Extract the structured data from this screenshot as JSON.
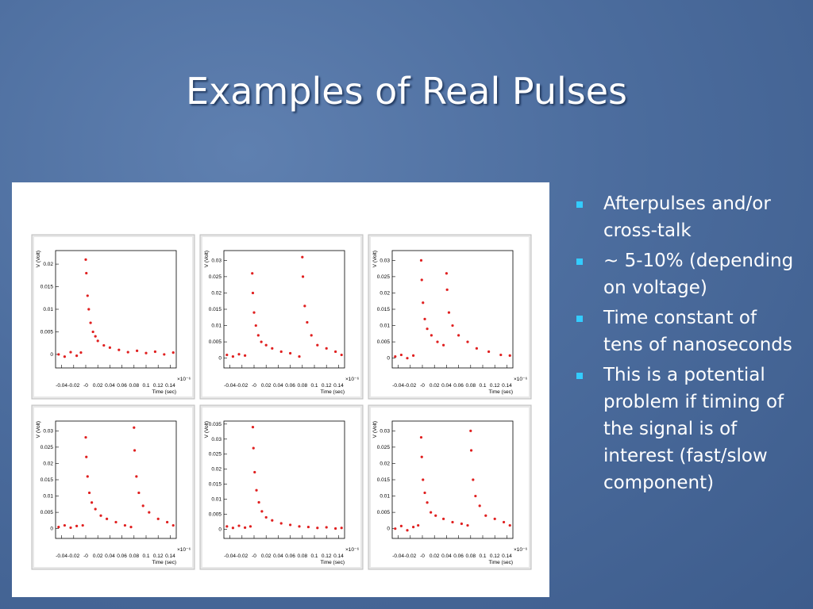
{
  "title": "Examples of Real Pulses",
  "bullets": [
    "Afterpulses and/or cross-talk",
    "~ 5-10% (depending on voltage)",
    "Time constant of tens of nanoseconds",
    "This is a potential problem if timing of the signal is of interest (fast/slow component)"
  ],
  "chart_data": [
    {
      "type": "scatter",
      "x_label": "Time (sec)",
      "y_label": "V (Volt)",
      "x_scale_label": "×10⁻⁶",
      "color": "#e02020",
      "xlim": [
        -0.05,
        0.15
      ],
      "ylim": [
        -0.003,
        0.023
      ],
      "xticks": [
        -0.04,
        -0.02,
        {
          "value": 0,
          "label": "-0"
        },
        0.02,
        0.04,
        0.06,
        0.08,
        0.1,
        0.12,
        0.14
      ],
      "yticks": [
        0,
        0.005,
        0.01,
        0.015,
        0.02
      ],
      "x": [
        -0.045,
        -0.035,
        -0.025,
        -0.015,
        -0.008,
        0,
        0.001,
        0.003,
        0.005,
        0.008,
        0.012,
        0.016,
        0.02,
        0.03,
        0.04,
        0.055,
        0.07,
        0.085,
        0.1,
        0.115,
        0.13,
        0.145
      ],
      "values": [
        0,
        -0.0005,
        0.0005,
        -0.0003,
        0.0004,
        0.021,
        0.018,
        0.013,
        0.01,
        0.007,
        0.005,
        0.004,
        0.003,
        0.002,
        0.0015,
        0.001,
        0.0005,
        0.0008,
        0.0003,
        0.0006,
        0,
        0.0004
      ]
    },
    {
      "type": "scatter",
      "x_label": "Time (sec)",
      "y_label": "V (Volt)",
      "x_scale_label": "×10⁻⁶",
      "color": "#e02020",
      "xlim": [
        -0.05,
        0.15
      ],
      "ylim": [
        -0.003,
        0.033
      ],
      "xticks": [
        -0.04,
        -0.02,
        {
          "value": 0,
          "label": "-0"
        },
        0.02,
        0.04,
        0.06,
        0.08,
        0.1,
        0.12,
        0.14
      ],
      "yticks": [
        0,
        0.005,
        0.01,
        0.015,
        0.02,
        0.025,
        0.03
      ],
      "x": [
        -0.045,
        -0.035,
        -0.025,
        -0.015,
        -0.003,
        -0.002,
        0,
        0.003,
        0.007,
        0.012,
        0.02,
        0.03,
        0.045,
        0.06,
        0.075,
        0.08,
        0.081,
        0.084,
        0.088,
        0.095,
        0.105,
        0.12,
        0.135,
        0.145
      ],
      "values": [
        0.001,
        0.0005,
        0.0012,
        0.0008,
        0.026,
        0.02,
        0.014,
        0.01,
        0.007,
        0.005,
        0.004,
        0.003,
        0.002,
        0.0015,
        0.0005,
        0.031,
        0.025,
        0.016,
        0.011,
        0.007,
        0.004,
        0.003,
        0.002,
        0.001
      ]
    },
    {
      "type": "scatter",
      "x_label": "Time (sec)",
      "y_label": "V (Volt)",
      "x_scale_label": "×10⁻⁶",
      "color": "#e02020",
      "xlim": [
        -0.05,
        0.15
      ],
      "ylim": [
        -0.003,
        0.033
      ],
      "xticks": [
        -0.04,
        -0.02,
        {
          "value": 0,
          "label": "-0"
        },
        0.02,
        0.04,
        0.06,
        0.08,
        0.1,
        0.12,
        0.14
      ],
      "yticks": [
        0,
        0.005,
        0.01,
        0.015,
        0.02,
        0.025,
        0.03
      ],
      "x": [
        -0.045,
        -0.035,
        -0.025,
        -0.015,
        -0.002,
        -0.001,
        0.001,
        0.004,
        0.008,
        0.015,
        0.025,
        0.035,
        0.04,
        0.041,
        0.044,
        0.05,
        0.06,
        0.075,
        0.09,
        0.11,
        0.13,
        0.145
      ],
      "values": [
        0.0005,
        0.001,
        0,
        0.0008,
        0.03,
        0.024,
        0.017,
        0.012,
        0.009,
        0.007,
        0.005,
        0.004,
        0.026,
        0.021,
        0.014,
        0.01,
        0.007,
        0.005,
        0.003,
        0.002,
        0.001,
        0.0008
      ]
    },
    {
      "type": "scatter",
      "x_label": "Time (sec)",
      "y_label": "V (Volt)",
      "x_scale_label": "×10⁻⁶",
      "color": "#e02020",
      "xlim": [
        -0.05,
        0.15
      ],
      "ylim": [
        -0.003,
        0.033
      ],
      "xticks": [
        -0.04,
        -0.02,
        {
          "value": 0,
          "label": "-0"
        },
        0.02,
        0.04,
        0.06,
        0.08,
        0.1,
        0.12,
        0.14
      ],
      "yticks": [
        0,
        0.005,
        0.01,
        0.015,
        0.02,
        0.025,
        0.03
      ],
      "x": [
        -0.045,
        -0.035,
        -0.025,
        -0.015,
        -0.005,
        0,
        0.001,
        0.003,
        0.006,
        0.01,
        0.016,
        0.025,
        0.035,
        0.05,
        0.065,
        0.075,
        0.08,
        0.081,
        0.084,
        0.088,
        0.095,
        0.105,
        0.12,
        0.135,
        0.145
      ],
      "values": [
        0.0005,
        0.001,
        0.0003,
        0.0008,
        0.001,
        0.028,
        0.022,
        0.016,
        0.011,
        0.008,
        0.006,
        0.004,
        0.003,
        0.002,
        0.001,
        0.0005,
        0.031,
        0.024,
        0.016,
        0.011,
        0.007,
        0.005,
        0.003,
        0.002,
        0.001
      ]
    },
    {
      "type": "scatter",
      "x_label": "Time (sec)",
      "y_label": "V (Volt)",
      "x_scale_label": "×10⁻⁶",
      "color": "#e02020",
      "xlim": [
        -0.05,
        0.15
      ],
      "ylim": [
        -0.003,
        0.036
      ],
      "xticks": [
        -0.04,
        -0.02,
        {
          "value": 0,
          "label": "-0"
        },
        0.02,
        0.04,
        0.06,
        0.08,
        0.1,
        0.12,
        0.14
      ],
      "yticks": [
        0,
        0.005,
        0.01,
        0.015,
        0.02,
        0.025,
        0.03,
        0.035
      ],
      "x": [
        -0.045,
        -0.035,
        -0.025,
        -0.015,
        -0.006,
        -0.002,
        -0.001,
        0.001,
        0.004,
        0.008,
        0.013,
        0.02,
        0.03,
        0.045,
        0.06,
        0.075,
        0.09,
        0.105,
        0.12,
        0.135,
        0.145
      ],
      "values": [
        0.001,
        0.0005,
        0.0012,
        0.0006,
        0.001,
        0.034,
        0.027,
        0.019,
        0.013,
        0.009,
        0.006,
        0.004,
        0.003,
        0.002,
        0.0015,
        0.001,
        0.0008,
        0.0005,
        0.0007,
        0.0003,
        0.0005
      ]
    },
    {
      "type": "scatter",
      "x_label": "Time (sec)",
      "y_label": "V (Volt)",
      "x_scale_label": "×10⁻⁶",
      "color": "#e02020",
      "xlim": [
        -0.05,
        0.15
      ],
      "ylim": [
        -0.003,
        0.033
      ],
      "xticks": [
        -0.04,
        -0.02,
        {
          "value": 0,
          "label": "-0"
        },
        0.02,
        0.04,
        0.06,
        0.08,
        0.1,
        0.12,
        0.14
      ],
      "yticks": [
        0,
        0.005,
        0.01,
        0.015,
        0.02,
        0.025,
        0.03
      ],
      "x": [
        -0.045,
        -0.035,
        -0.025,
        -0.015,
        -0.007,
        -0.002,
        -0.001,
        0.001,
        0.004,
        0.008,
        0.014,
        0.022,
        0.035,
        0.05,
        0.065,
        0.075,
        0.08,
        0.081,
        0.084,
        0.088,
        0.095,
        0.105,
        0.12,
        0.135,
        0.145
      ],
      "values": [
        0,
        0.0008,
        -0.0005,
        0.0005,
        0.001,
        0.028,
        0.022,
        0.015,
        0.011,
        0.008,
        0.005,
        0.004,
        0.003,
        0.002,
        0.0015,
        0.001,
        0.03,
        0.024,
        0.015,
        0.01,
        0.007,
        0.004,
        0.003,
        0.002,
        0.001
      ]
    }
  ]
}
